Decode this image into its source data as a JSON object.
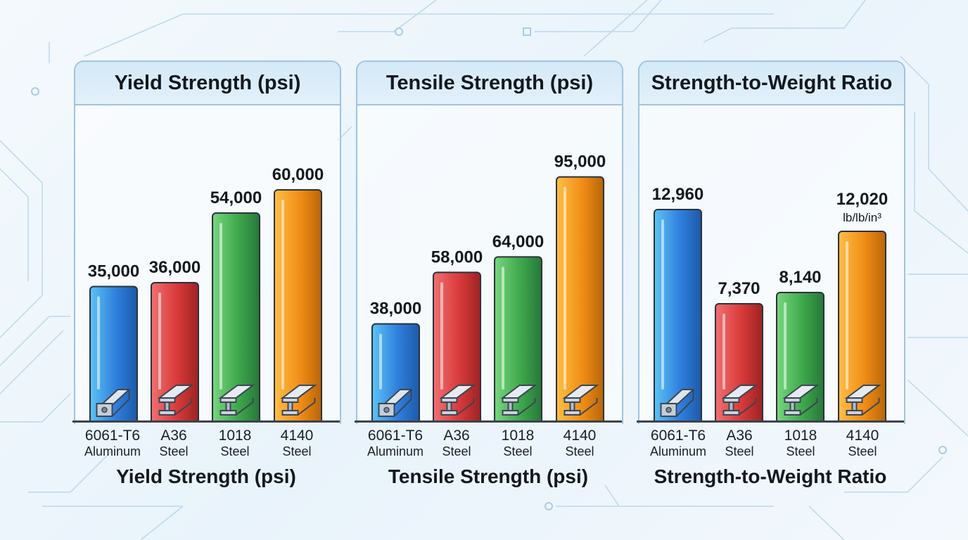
{
  "colors": {
    "blue": "#3a9ce8",
    "red": "#e04848",
    "green": "#4cb85a",
    "orange": "#f5a023"
  },
  "chart_data": [
    {
      "type": "bar",
      "title": "Yield Strength (psi)",
      "xlabel": "Yield Strength (psi)",
      "ylim": [
        0,
        72000
      ],
      "categories": [
        {
          "name": "6061-T6",
          "material": "Aluminum"
        },
        {
          "name": "A36",
          "material": "Steel"
        },
        {
          "name": "1018",
          "material": "Steel"
        },
        {
          "name": "4140",
          "material": "Steel"
        }
      ],
      "values": [
        35000,
        36000,
        54000,
        60000
      ],
      "value_labels": [
        "35,000",
        "36,000",
        "54,000",
        "60,000"
      ],
      "unit_label": ""
    },
    {
      "type": "bar",
      "title": "Tensile Strength (psi)",
      "xlabel": "Tensile Strength (psi)",
      "ylim": [
        0,
        108000
      ],
      "categories": [
        {
          "name": "6061-T6",
          "material": "Aluminum"
        },
        {
          "name": "A36",
          "material": "Steel"
        },
        {
          "name": "1018",
          "material": "Steel"
        },
        {
          "name": "4140",
          "material": "Steel"
        }
      ],
      "values": [
        38000,
        58000,
        64000,
        95000
      ],
      "value_labels": [
        "38,000",
        "58,000",
        "64,000",
        "95,000"
      ],
      "unit_label": ""
    },
    {
      "type": "bar",
      "title": "Strength-to-Weight Ratio",
      "xlabel": "Strength-to-Weight Ratio",
      "ylim": [
        0,
        20000
      ],
      "categories": [
        {
          "name": "6061-T6",
          "material": "Aluminum"
        },
        {
          "name": "A36",
          "material": "Steel"
        },
        {
          "name": "1018",
          "material": "Steel"
        },
        {
          "name": "4140",
          "material": "Steel"
        }
      ],
      "values": [
        12960,
        7370,
        8140,
        12020
      ],
      "value_labels": [
        "12,960",
        "7,370",
        "8,140",
        "12,020"
      ],
      "unit_label": "lb/lb/in³",
      "display_heights": [
        302,
        168,
        184,
        271
      ]
    }
  ]
}
